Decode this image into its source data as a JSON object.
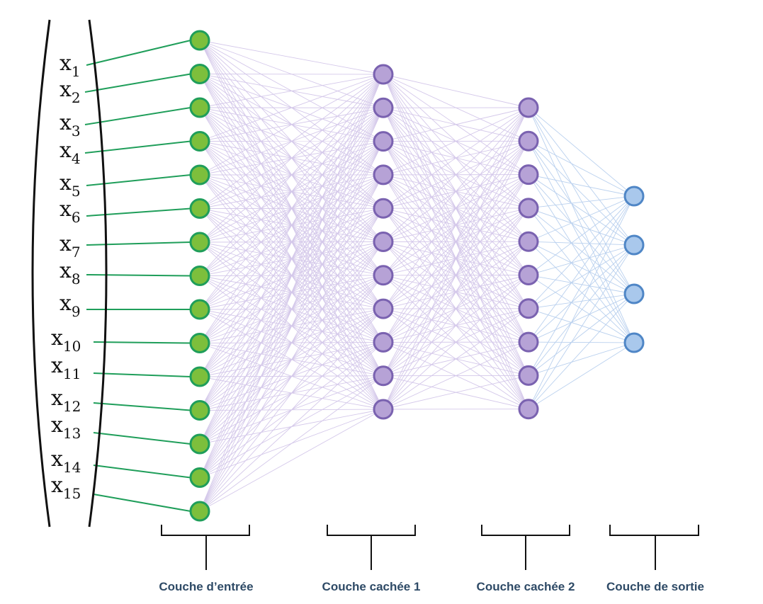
{
  "inputs": [
    {
      "base": "x",
      "sub": "1"
    },
    {
      "base": "x",
      "sub": "2"
    },
    {
      "base": "x",
      "sub": "3"
    },
    {
      "base": "x",
      "sub": "4"
    },
    {
      "base": "x",
      "sub": "5"
    },
    {
      "base": "x",
      "sub": "6"
    },
    {
      "base": "x",
      "sub": "7"
    },
    {
      "base": "x",
      "sub": "8"
    },
    {
      "base": "x",
      "sub": "9"
    },
    {
      "base": "x",
      "sub": "10"
    },
    {
      "base": "x",
      "sub": "11"
    },
    {
      "base": "x",
      "sub": "12"
    },
    {
      "base": "x",
      "sub": "13"
    },
    {
      "base": "x",
      "sub": "14"
    },
    {
      "base": "x",
      "sub": "15"
    }
  ],
  "layers": [
    {
      "label": "Couche d’entrée",
      "neurons": 15,
      "fill": "#7dbf3c",
      "stroke": "#1f9e5a",
      "edge": "#d4c8ea"
    },
    {
      "label": "Couche cachée 1",
      "neurons": 11,
      "fill": "#b6a2d6",
      "stroke": "#7a62b0",
      "edge": "#d4c8ea"
    },
    {
      "label": "Couche cachée 2",
      "neurons": 10,
      "fill": "#b6a2d6",
      "stroke": "#7a62b0",
      "edge": "#b9d0ee"
    },
    {
      "label": "Couche de sortie",
      "neurons": 4,
      "fill": "#a9c8ec",
      "stroke": "#4f86c6"
    }
  ],
  "colors": {
    "input_connector": "#1f9e5a",
    "bracket": "#111111",
    "layer_label": "#2e4a66"
  }
}
